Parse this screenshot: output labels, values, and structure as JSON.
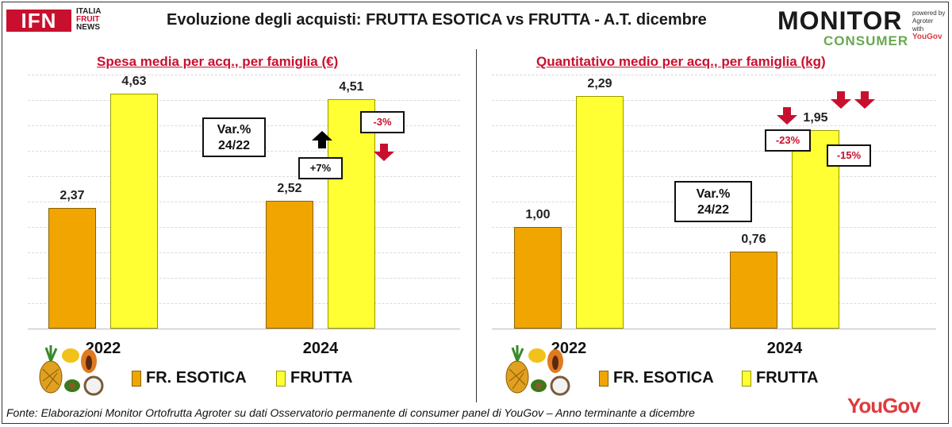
{
  "header": {
    "title": "Evoluzione degli acquisti: FRUTTA ESOTICA vs FRUTTA  - A.T. dicembre",
    "ifn_logo": {
      "main": "IFN",
      "line1": "ITALIA",
      "line2": "FRUIT",
      "line3": "NEWS"
    },
    "mc_logo": {
      "monitor": "MONITOR",
      "consumer": "CONSUMER",
      "powered": "powered by",
      "agroter": "Agroter",
      "with": "with",
      "yougov": "YouGov"
    }
  },
  "chart_data": [
    {
      "type": "bar",
      "title": "Spesa media per acq., per famiglia (€)",
      "categories": [
        "2022",
        "2024"
      ],
      "series": [
        {
          "name": "FR. ESOTICA",
          "values": [
            2.37,
            2.52
          ],
          "labels": [
            "2,37",
            "2,52"
          ],
          "color": "#f0a500"
        },
        {
          "name": "FRUTTA",
          "values": [
            4.63,
            4.51
          ],
          "labels": [
            "4,63",
            "4,51"
          ],
          "color": "#ffff33"
        }
      ],
      "ylim": [
        0,
        5
      ],
      "annotations": {
        "var_label_line1": "Var.%",
        "var_label_line2": "24/22",
        "exotic_change": "+7%",
        "fruit_change": "-3%"
      }
    },
    {
      "type": "bar",
      "title": "Quantitativo medio per acq., per famiglia (kg)",
      "categories": [
        "2022",
        "2024"
      ],
      "series": [
        {
          "name": "FR. ESOTICA",
          "values": [
            1.0,
            0.76
          ],
          "labels": [
            "1,00",
            "0,76"
          ],
          "color": "#f0a500"
        },
        {
          "name": "FRUTTA",
          "values": [
            2.29,
            1.95
          ],
          "labels": [
            "2,29",
            "1,95"
          ],
          "color": "#ffff33"
        }
      ],
      "ylim": [
        0,
        2.5
      ],
      "annotations": {
        "var_label_line1": "Var.%",
        "var_label_line2": "24/22",
        "exotic_change": "-23%",
        "fruit_change": "-15%"
      }
    }
  ],
  "legend": {
    "exotic": "FR. ESOTICA",
    "fruit": "FRUTTA"
  },
  "footer": {
    "source": "Fonte: Elaborazioni Monitor Ortofrutta Agroter su dati Osservatorio permanente di consumer panel di YouGov  – Anno terminante a dicembre",
    "yougov": "YouGov"
  },
  "colors": {
    "accent": "#c8102e",
    "exotic": "#f0a500",
    "fruit": "#ffff33",
    "arrow_down": "#c8102e",
    "arrow_up": "#000000"
  },
  "icons": [
    "fruit-cluster-icon",
    "arrow-up-icon",
    "arrow-down-icon"
  ]
}
